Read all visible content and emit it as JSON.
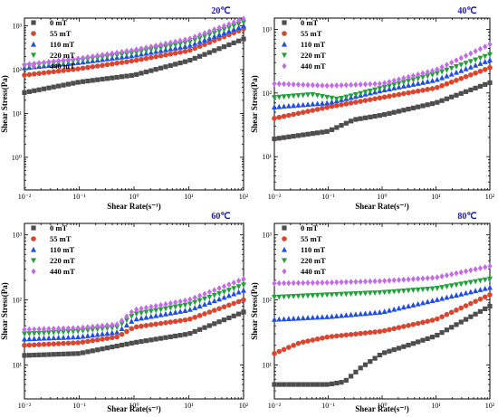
{
  "colors": {
    "s0": "#4d4d4d",
    "s55": "#d9452f",
    "s110": "#1f4fe0",
    "s220": "#22a03a",
    "s440": "#c46be6",
    "title": "#1a1aa6"
  },
  "legend": [
    "0    mT",
    "55   mT",
    "110  mT",
    "220  mT",
    "440  mT"
  ],
  "chart_data": [
    {
      "type": "scatter",
      "title": "20℃",
      "xlabel": "Shear Rate(s⁻¹)",
      "ylabel": "Shear Stress(Pa)",
      "xscale": "log",
      "yscale": "log",
      "xlim": [
        0.01,
        100
      ],
      "ylim": [
        0.18,
        1500
      ],
      "xticks": [
        "10⁻²",
        "10⁻¹",
        "10⁰",
        "10¹",
        "10²"
      ],
      "yticks": [
        {
          "v": 1,
          "label": "10⁰"
        },
        {
          "v": 10,
          "label": "10¹"
        },
        {
          "v": 100,
          "label": "10²"
        },
        {
          "v": 1000,
          "label": "10³"
        }
      ],
      "series": [
        {
          "name": "0    mT",
          "marker": "square",
          "color": "#4d4d4d",
          "curve": [
            [
              0.01,
              30
            ],
            [
              0.1,
              52
            ],
            [
              1,
              75
            ],
            [
              10,
              160
            ],
            [
              100,
              500
            ]
          ]
        },
        {
          "name": "55   mT",
          "marker": "circle",
          "color": "#d9452f",
          "curve": [
            [
              0.01,
              75
            ],
            [
              0.1,
              105
            ],
            [
              1,
              160
            ],
            [
              10,
              270
            ],
            [
              100,
              850
            ]
          ]
        },
        {
          "name": "110  mT",
          "marker": "triangle-up",
          "color": "#1f4fe0",
          "curve": [
            [
              0.01,
              110
            ],
            [
              0.1,
              145
            ],
            [
              1,
              210
            ],
            [
              10,
              350
            ],
            [
              100,
              1000
            ]
          ]
        },
        {
          "name": "220  mT",
          "marker": "triangle-down",
          "color": "#22a03a",
          "curve": [
            [
              0.01,
              120
            ],
            [
              0.1,
              160
            ],
            [
              1,
              240
            ],
            [
              10,
              420
            ],
            [
              100,
              1200
            ]
          ]
        },
        {
          "name": "440  mT",
          "marker": "diamond",
          "color": "#c46be6",
          "curve": [
            [
              0.01,
              130
            ],
            [
              0.1,
              180
            ],
            [
              1,
              280
            ],
            [
              10,
              500
            ],
            [
              100,
              1450
            ]
          ]
        }
      ]
    },
    {
      "type": "scatter",
      "title": "40℃",
      "xlabel": "Shear Rate(s⁻¹)",
      "ylabel": "Shear Stress(Pa)",
      "xscale": "log",
      "yscale": "log",
      "xlim": [
        0.01,
        100
      ],
      "ylim": [
        3,
        1500
      ],
      "xticks": [
        "10⁻²",
        "10⁻¹",
        "10⁰",
        "10¹",
        "10²"
      ],
      "yticks": [
        {
          "v": 10,
          "label": "10¹"
        },
        {
          "v": 100,
          "label": "10²"
        },
        {
          "v": 1000,
          "label": "10³"
        }
      ],
      "series": [
        {
          "name": "0    mT",
          "marker": "square",
          "color": "#4d4d4d",
          "curve": [
            [
              0.01,
              19
            ],
            [
              0.1,
              25
            ],
            [
              0.3,
              38
            ],
            [
              1,
              45
            ],
            [
              10,
              70
            ],
            [
              100,
              145
            ]
          ]
        },
        {
          "name": "55   mT",
          "marker": "circle",
          "color": "#d9452f",
          "curve": [
            [
              0.01,
              40
            ],
            [
              0.1,
              60
            ],
            [
              1,
              85
            ],
            [
              10,
              120
            ],
            [
              100,
              250
            ]
          ]
        },
        {
          "name": "110  mT",
          "marker": "triangle-up",
          "color": "#1f4fe0",
          "curve": [
            [
              0.01,
              60
            ],
            [
              0.1,
              70
            ],
            [
              1,
              110
            ],
            [
              10,
              160
            ],
            [
              100,
              330
            ]
          ]
        },
        {
          "name": "220  mT",
          "marker": "triangle-down",
          "color": "#22a03a",
          "curve": [
            [
              0.01,
              85
            ],
            [
              0.05,
              95
            ],
            [
              0.15,
              80
            ],
            [
              1,
              120
            ],
            [
              10,
              200
            ],
            [
              100,
              400
            ]
          ]
        },
        {
          "name": "440  mT",
          "marker": "diamond",
          "color": "#c46be6",
          "curve": [
            [
              0.01,
              140
            ],
            [
              0.1,
              130
            ],
            [
              1,
              140
            ],
            [
              10,
              230
            ],
            [
              100,
              580
            ]
          ]
        }
      ]
    },
    {
      "type": "scatter",
      "title": "60℃",
      "xlabel": "Shear Rate(s⁻¹)",
      "ylabel": "Shear Stress(Pa)",
      "xscale": "log",
      "yscale": "log",
      "xlim": [
        0.01,
        100
      ],
      "ylim": [
        3,
        1500
      ],
      "xticks": [
        "10⁻²",
        "10⁻¹",
        "10⁰",
        "10¹",
        "10²"
      ],
      "yticks": [
        {
          "v": 10,
          "label": "10¹"
        },
        {
          "v": 100,
          "label": "10²"
        },
        {
          "v": 1000,
          "label": "10³"
        }
      ],
      "series": [
        {
          "name": "0    mT",
          "marker": "square",
          "color": "#4d4d4d",
          "curve": [
            [
              0.01,
              14
            ],
            [
              0.1,
              15
            ],
            [
              1,
              22
            ],
            [
              10,
              30
            ],
            [
              100,
              65
            ]
          ]
        },
        {
          "name": "55   mT",
          "marker": "circle",
          "color": "#d9452f",
          "curve": [
            [
              0.01,
              20
            ],
            [
              0.1,
              22
            ],
            [
              0.5,
              27
            ],
            [
              1,
              38
            ],
            [
              10,
              50
            ],
            [
              100,
              100
            ]
          ]
        },
        {
          "name": "110  mT",
          "marker": "triangle-up",
          "color": "#1f4fe0",
          "curve": [
            [
              0.01,
              25
            ],
            [
              0.1,
              27
            ],
            [
              0.5,
              32
            ],
            [
              1,
              50
            ],
            [
              10,
              70
            ],
            [
              100,
              140
            ]
          ]
        },
        {
          "name": "220  mT",
          "marker": "triangle-down",
          "color": "#22a03a",
          "curve": [
            [
              0.01,
              30
            ],
            [
              0.1,
              33
            ],
            [
              0.5,
              38
            ],
            [
              1,
              60
            ],
            [
              10,
              85
            ],
            [
              100,
              170
            ]
          ]
        },
        {
          "name": "440  mT",
          "marker": "diamond",
          "color": "#c46be6",
          "curve": [
            [
              0.01,
              35
            ],
            [
              0.1,
              37
            ],
            [
              0.5,
              42
            ],
            [
              1,
              70
            ],
            [
              10,
              100
            ],
            [
              100,
              210
            ]
          ]
        }
      ]
    },
    {
      "type": "scatter",
      "title": "80℃",
      "xlabel": "Shear Rate(s⁻¹)",
      "ylabel": "Shear Stress(Pa)",
      "xscale": "log",
      "yscale": "log",
      "xlim": [
        0.01,
        100
      ],
      "ylim": [
        3,
        1500
      ],
      "xticks": [
        "10⁻²",
        "10⁻¹",
        "10⁰",
        "10¹",
        "10²"
      ],
      "yticks": [
        {
          "v": 10,
          "label": "10¹"
        },
        {
          "v": 100,
          "label": "10²"
        },
        {
          "v": 1000,
          "label": "10³"
        }
      ],
      "series": [
        {
          "name": "0    mT",
          "marker": "square",
          "color": "#4d4d4d",
          "curve": [
            [
              0.01,
              5
            ],
            [
              0.1,
              5
            ],
            [
              0.2,
              5.5
            ],
            [
              0.4,
              9
            ],
            [
              1,
              15
            ],
            [
              3,
              20
            ],
            [
              10,
              28
            ],
            [
              100,
              80
            ]
          ]
        },
        {
          "name": "55   mT",
          "marker": "circle",
          "color": "#d9452f",
          "curve": [
            [
              0.01,
              15
            ],
            [
              0.03,
              22
            ],
            [
              0.1,
              27
            ],
            [
              1,
              33
            ],
            [
              10,
              50
            ],
            [
              100,
              120
            ]
          ]
        },
        {
          "name": "110  mT",
          "marker": "triangle-up",
          "color": "#1f4fe0",
          "curve": [
            [
              0.01,
              50
            ],
            [
              0.1,
              55
            ],
            [
              1,
              65
            ],
            [
              10,
              100
            ],
            [
              100,
              155
            ]
          ]
        },
        {
          "name": "220  mT",
          "marker": "triangle-down",
          "color": "#22a03a",
          "curve": [
            [
              0.01,
              110
            ],
            [
              0.1,
              120
            ],
            [
              1,
              130
            ],
            [
              10,
              150
            ],
            [
              100,
              210
            ]
          ]
        },
        {
          "name": "440  mT",
          "marker": "diamond",
          "color": "#c46be6",
          "curve": [
            [
              0.01,
              180
            ],
            [
              0.1,
              185
            ],
            [
              1,
              195
            ],
            [
              10,
              220
            ],
            [
              100,
              330
            ]
          ]
        }
      ]
    }
  ]
}
